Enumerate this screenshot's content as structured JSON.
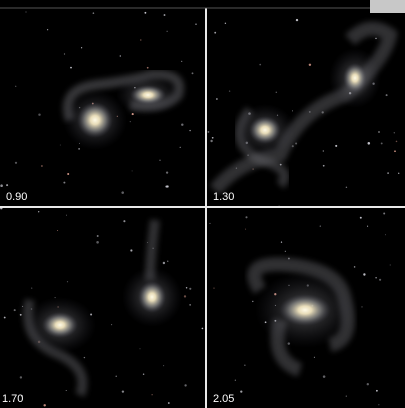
{
  "panels": [
    {
      "label": "0.90"
    },
    {
      "label": "1.30"
    },
    {
      "label": "1.70"
    },
    {
      "label": "2.05"
    }
  ]
}
